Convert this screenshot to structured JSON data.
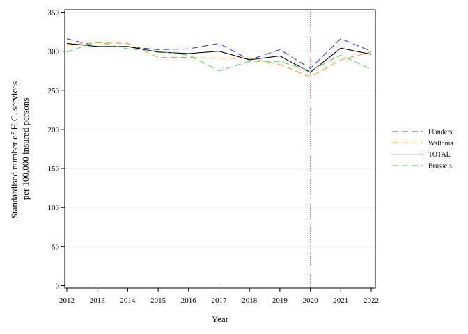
{
  "chart_data": {
    "type": "line",
    "xlabel": "Year",
    "ylabel": [
      "Standardised number of H.C. services",
      "per 100,000 insured persons"
    ],
    "x": [
      "2012",
      "2013",
      "2014",
      "2015",
      "2016",
      "2017",
      "2018",
      "2019",
      "2020",
      "2021",
      "2022"
    ],
    "ylim": [
      0,
      350
    ],
    "yticks": [
      "0",
      "50",
      "100",
      "150",
      "200",
      "250",
      "300",
      "350"
    ],
    "grid": "horizontal",
    "legend_position": "right",
    "reference_line": {
      "x": "2020",
      "color": "#e06060",
      "style": "dotted"
    },
    "series": [
      {
        "name": "Flanders",
        "color": "#3b3bdc",
        "dash": "long-dash",
        "values": [
          316,
          306,
          306,
          302,
          303,
          310,
          289,
          302,
          278,
          316,
          300
        ]
      },
      {
        "name": "Wallonia",
        "color": "#f29a2e",
        "dash": "long-dash",
        "values": [
          308,
          311,
          310,
          292,
          292,
          291,
          291,
          283,
          267,
          289,
          299
        ]
      },
      {
        "name": "TOTAL",
        "color": "#000000",
        "dash": "solid",
        "values": [
          310,
          306,
          306,
          299,
          297,
          300,
          289,
          294,
          273,
          304,
          296
        ]
      },
      {
        "name": "Brussels",
        "color": "#5fcf5f",
        "dash": "long-dash",
        "values": [
          299,
          312,
          303,
          300,
          295,
          275,
          287,
          287,
          275,
          295,
          277
        ]
      }
    ]
  }
}
